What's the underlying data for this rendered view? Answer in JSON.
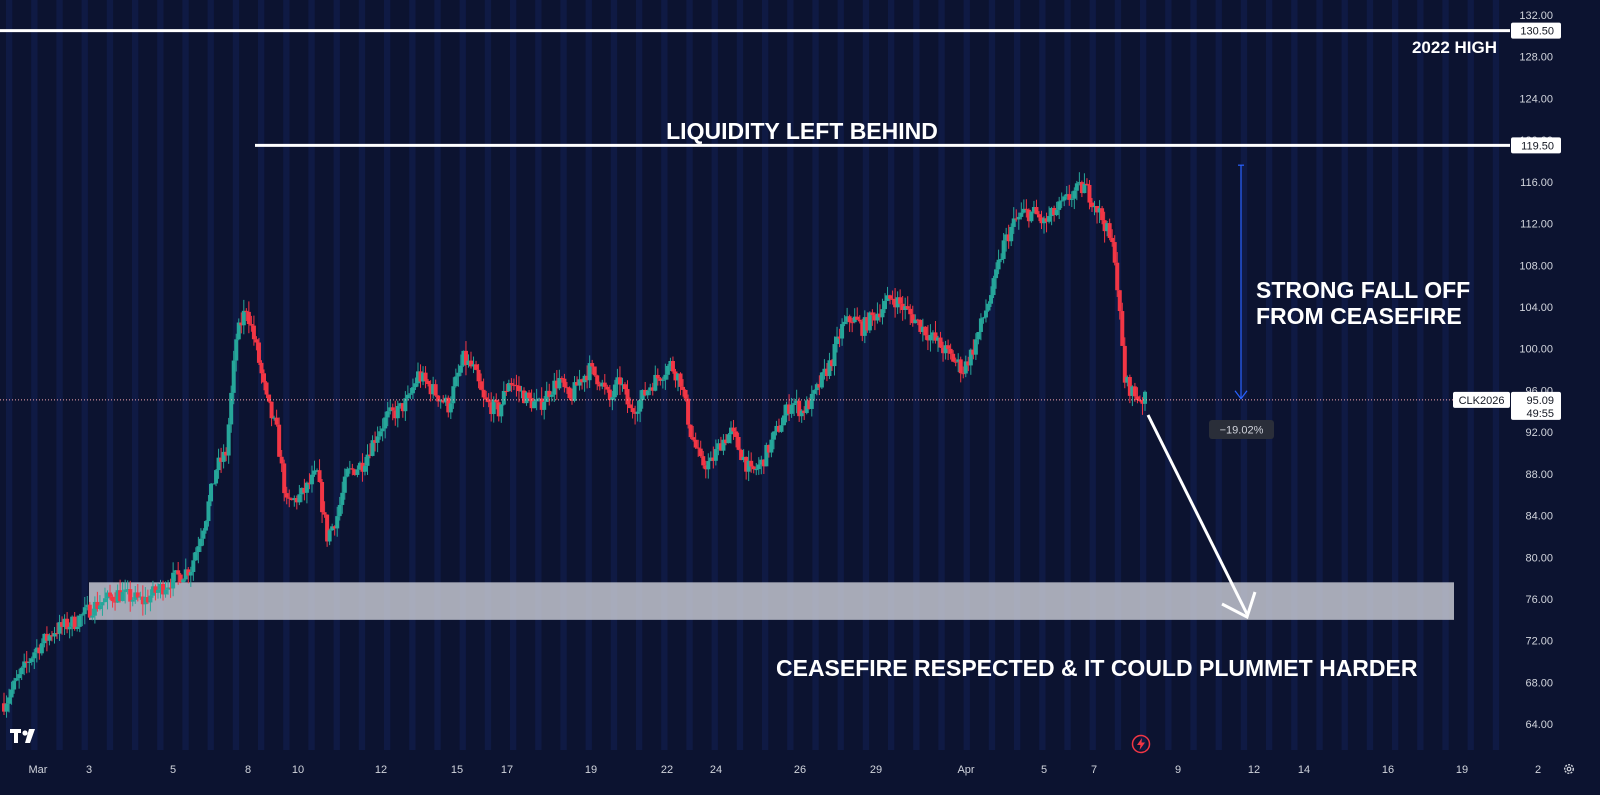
{
  "chart_data": {
    "type": "candlestick",
    "symbol": "CLK2026",
    "last_price": "95.09",
    "countdown": "49:55",
    "y_range": [
      62.0,
      132.0
    ],
    "y_ticks": [
      "132.00",
      "128.00",
      "124.00",
      "120.00",
      "116.00",
      "112.00",
      "108.00",
      "104.00",
      "100.00",
      "96.00",
      "92.00",
      "88.00",
      "84.00",
      "80.00",
      "76.00",
      "72.00",
      "68.00",
      "64.00"
    ],
    "x_ticks": [
      "Mar",
      "3",
      "5",
      "8",
      "10",
      "12",
      "15",
      "17",
      "19",
      "22",
      "24",
      "26",
      "29",
      "Apr",
      "5",
      "7",
      "9",
      "12",
      "14",
      "16",
      "19",
      "2"
    ],
    "price_labels": [
      {
        "value": 130.5,
        "text": "130.50"
      },
      {
        "value": 119.5,
        "text": "119.50"
      }
    ],
    "levels": {
      "high_2022": 130.5,
      "liquidity": 119.5
    },
    "zone": {
      "low": 74.0,
      "high": 77.6
    },
    "measure": {
      "from": 117.6,
      "to": 95.2,
      "label": "−19.02%"
    },
    "annotations": {
      "high_2022": "2022 HIGH",
      "liquidity": "LIQUIDITY LEFT BEHIND",
      "fall_line1": "STRONG FALL OFF",
      "fall_line2": "FROM CEASEFIRE",
      "ceasefire": "CEASEFIRE RESPECTED & IT COULD PLUMMET HARDER"
    },
    "grid": false,
    "colors": {
      "background": "#0c1330",
      "band": "#0f1a44",
      "up": "#26a69a",
      "down": "#f23645",
      "level": "#ffffff",
      "measure": "#2962ff",
      "zone": "#c9ccd6"
    }
  },
  "ui": {
    "settings_icon": "gear-icon",
    "alert_icon": "lightning-icon",
    "logo": "tradingview-logo"
  }
}
